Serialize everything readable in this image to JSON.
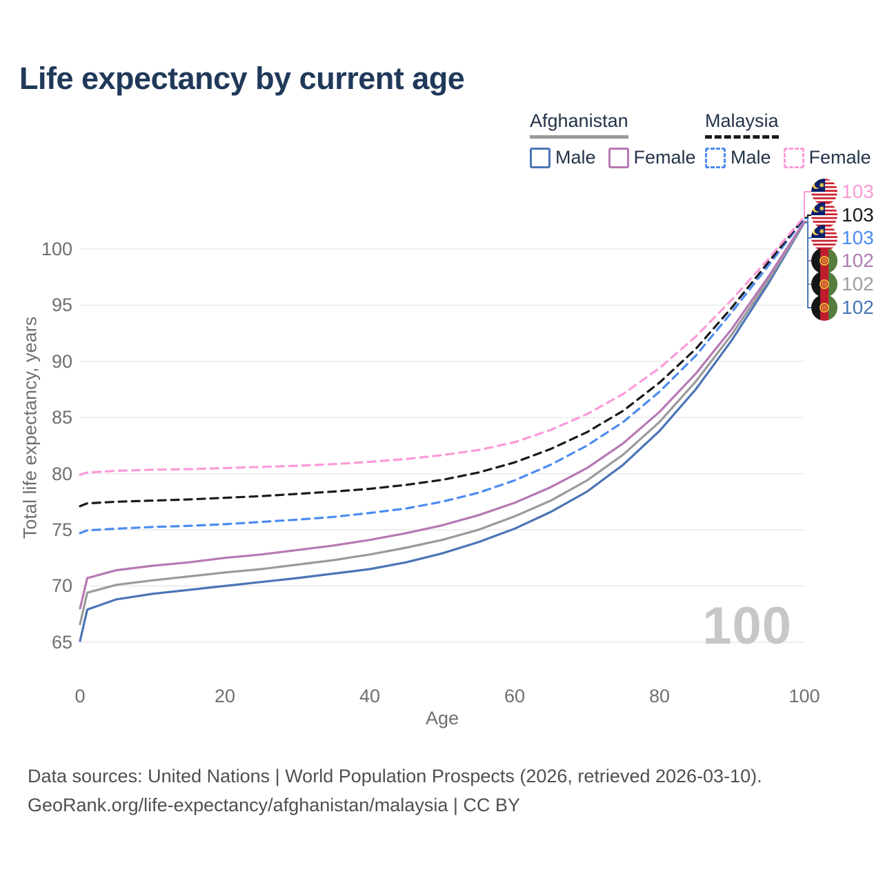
{
  "header": {
    "title": "Life expectancy by current age"
  },
  "legend": {
    "groups": [
      {
        "country": "Afghanistan",
        "line_style": "solid",
        "line_color": "#9a9a9a",
        "items": [
          {
            "label": "Male",
            "color": "#4a74b5",
            "style": "solid"
          },
          {
            "label": "Female",
            "color": "#b678b4",
            "style": "solid"
          }
        ]
      },
      {
        "country": "Malaysia",
        "line_style": "dashed",
        "line_color": "#1a1a1a",
        "items": [
          {
            "label": "Male",
            "color": "#4b8bf2",
            "style": "dashed"
          },
          {
            "label": "Female",
            "color": "#fb9ad8",
            "style": "dashed"
          }
        ]
      }
    ]
  },
  "axes": {
    "y_title": "Total life expectancy, years",
    "x_title": "Age",
    "y_ticks": [
      65,
      70,
      75,
      80,
      85,
      90,
      95,
      100
    ],
    "x_ticks": [
      0,
      20,
      40,
      60,
      80,
      100
    ]
  },
  "watermark": "100",
  "end_labels": [
    {
      "value": "103",
      "color": "#fb9ad8",
      "flag": "malaysia-flag",
      "series": "Malaysia Female"
    },
    {
      "value": "103",
      "color": "#1a1a1a",
      "flag": "malaysia-flag",
      "series": "Malaysia Both sexes"
    },
    {
      "value": "103",
      "color": "#4b8bf2",
      "flag": "malaysia-flag",
      "series": "Malaysia Male"
    },
    {
      "value": "102",
      "color": "#b07cb2",
      "flag": "afghanistan-flag",
      "series": "Afghanistan Female"
    },
    {
      "value": "102",
      "color": "#9e9e9e",
      "flag": "afghanistan-flag",
      "series": "Afghanistan Both sexes"
    },
    {
      "value": "102",
      "color": "#4a74b5",
      "flag": "afghanistan-flag",
      "series": "Afghanistan Male"
    }
  ],
  "footer": {
    "line1": "Data sources: United Nations | World Population Prospects (2026, retrieved 2026-03-10).",
    "line2": "GeoRank.org/life-expectancy/afghanistan/malaysia | CC BY"
  },
  "chart_data": {
    "type": "line",
    "title": "Life expectancy by current age",
    "xlabel": "Age",
    "ylabel": "Total life expectancy, years",
    "xlim": [
      0,
      100
    ],
    "ylim": [
      63.5,
      103.5
    ],
    "grid": "horizontal",
    "x": [
      0,
      1,
      5,
      10,
      15,
      20,
      25,
      30,
      35,
      40,
      45,
      50,
      55,
      60,
      65,
      70,
      75,
      80,
      85,
      90,
      95,
      100
    ],
    "series": [
      {
        "name": "Afghanistan Male",
        "country": "Afghanistan",
        "sex": "male",
        "style": "solid",
        "color": "#4a74b5",
        "values": [
          65.1,
          67.9,
          68.8,
          69.3,
          69.65,
          70.0,
          70.35,
          70.7,
          71.1,
          71.5,
          72.1,
          72.9,
          73.9,
          75.1,
          76.6,
          78.4,
          80.8,
          83.8,
          87.5,
          91.9,
          96.9,
          102.35
        ]
      },
      {
        "name": "Afghanistan Both sexes",
        "country": "Afghanistan",
        "sex": "both",
        "style": "solid",
        "color": "#9a9a9a",
        "values": [
          66.6,
          69.4,
          70.1,
          70.5,
          70.85,
          71.2,
          71.5,
          71.9,
          72.3,
          72.8,
          73.4,
          74.1,
          75.0,
          76.2,
          77.6,
          79.4,
          81.7,
          84.6,
          88.2,
          92.4,
          97.2,
          102.4
        ]
      },
      {
        "name": "Afghanistan Female",
        "country": "Afghanistan",
        "sex": "female",
        "style": "solid",
        "color": "#b678b4",
        "values": [
          68.0,
          70.7,
          71.4,
          71.8,
          72.1,
          72.5,
          72.8,
          73.2,
          73.6,
          74.1,
          74.7,
          75.4,
          76.3,
          77.4,
          78.8,
          80.5,
          82.7,
          85.5,
          88.9,
          92.9,
          97.5,
          102.45
        ]
      },
      {
        "name": "Malaysia Male",
        "country": "Malaysia",
        "sex": "male",
        "style": "dashed",
        "color": "#4b8bf2",
        "values": [
          74.7,
          74.95,
          75.1,
          75.25,
          75.35,
          75.5,
          75.7,
          75.9,
          76.15,
          76.5,
          76.9,
          77.5,
          78.3,
          79.4,
          80.8,
          82.5,
          84.6,
          87.3,
          90.5,
          94.4,
          98.5,
          102.7
        ]
      },
      {
        "name": "Malaysia Both sexes",
        "country": "Malaysia",
        "sex": "both",
        "style": "dashed",
        "color": "#1a1a1a",
        "values": [
          77.1,
          77.35,
          77.5,
          77.6,
          77.7,
          77.85,
          78.0,
          78.2,
          78.4,
          78.65,
          79.0,
          79.45,
          80.1,
          81.0,
          82.2,
          83.7,
          85.6,
          88.1,
          91.1,
          94.8,
          98.8,
          102.8
        ]
      },
      {
        "name": "Malaysia Female",
        "country": "Malaysia",
        "sex": "female",
        "style": "dashed",
        "color": "#fb9ad8",
        "values": [
          79.9,
          80.1,
          80.25,
          80.35,
          80.4,
          80.5,
          80.6,
          80.7,
          80.85,
          81.05,
          81.3,
          81.65,
          82.1,
          82.8,
          83.9,
          85.3,
          87.1,
          89.4,
          92.2,
          95.5,
          99.1,
          102.9
        ]
      }
    ]
  }
}
